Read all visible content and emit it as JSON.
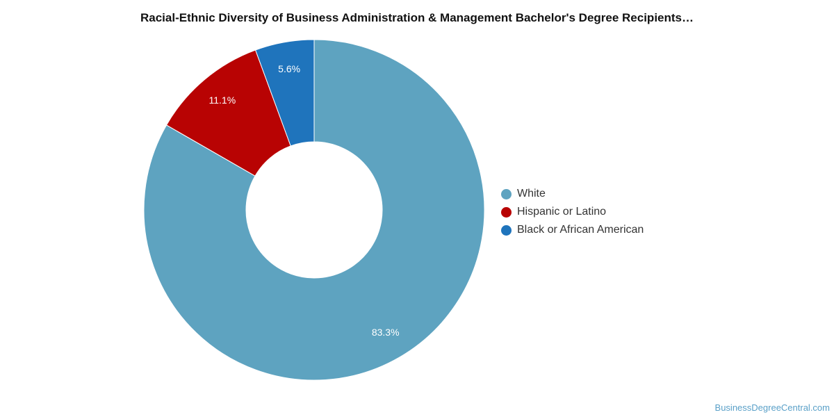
{
  "chart_data": {
    "type": "pie",
    "title": "Racial-Ethnic Diversity of Business Administration & Management Bachelor's Degree Recipients…",
    "donut": true,
    "legend_position": "right",
    "slices": [
      {
        "label": "White",
        "value": 83.3,
        "display": "83.3%",
        "color": "#5ea3c0"
      },
      {
        "label": "Hispanic or Latino",
        "value": 11.1,
        "display": "11.1%",
        "color": "#b80303"
      },
      {
        "label": "Black or African American",
        "value": 5.6,
        "display": "5.6%",
        "color": "#1f74bc"
      }
    ]
  },
  "footer": {
    "credit": "BusinessDegreeCentral.com",
    "credit_color": "#5aa0c8"
  }
}
